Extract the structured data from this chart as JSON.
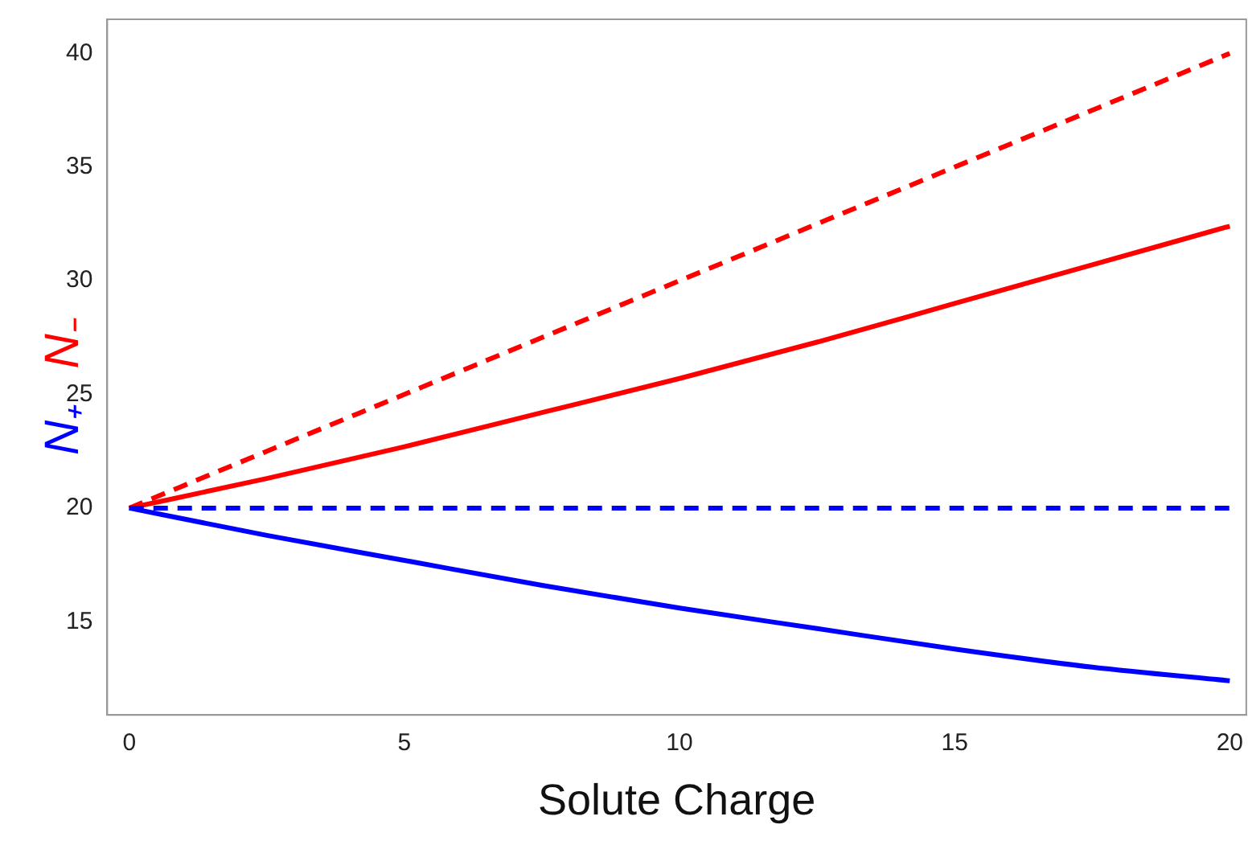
{
  "chart_data": {
    "type": "line",
    "xlabel": "Solute Charge",
    "ylabel": "N₊ N₋",
    "xlim": [
      -0.4,
      20.3
    ],
    "ylim": [
      10.9,
      41.5
    ],
    "xticks": [
      0,
      5,
      10,
      15,
      20
    ],
    "yticks": [
      15,
      20,
      25,
      30,
      35,
      40
    ],
    "grid": false,
    "legend": false,
    "marker": "none",
    "series": [
      {
        "color": "#0000ff",
        "line_style": "solid",
        "x": [
          0,
          2.5,
          5,
          7.5,
          10,
          12.5,
          15,
          17.5,
          20
        ],
        "values": [
          20,
          18.8,
          17.7,
          16.6,
          15.6,
          14.7,
          13.8,
          13.0,
          12.4
        ]
      },
      {
        "color": "#0000ff",
        "line_style": "dashed",
        "x": [
          0,
          20
        ],
        "values": [
          20,
          20
        ]
      },
      {
        "color": "#ff0000",
        "line_style": "solid",
        "x": [
          0,
          2.5,
          5,
          7.5,
          10,
          12.5,
          15,
          17.5,
          20
        ],
        "values": [
          20,
          21.3,
          22.7,
          24.2,
          25.7,
          27.3,
          29.0,
          30.7,
          32.4
        ]
      },
      {
        "color": "#ff0000",
        "line_style": "dashed",
        "x": [
          0,
          20
        ],
        "values": [
          20,
          40
        ]
      }
    ]
  }
}
